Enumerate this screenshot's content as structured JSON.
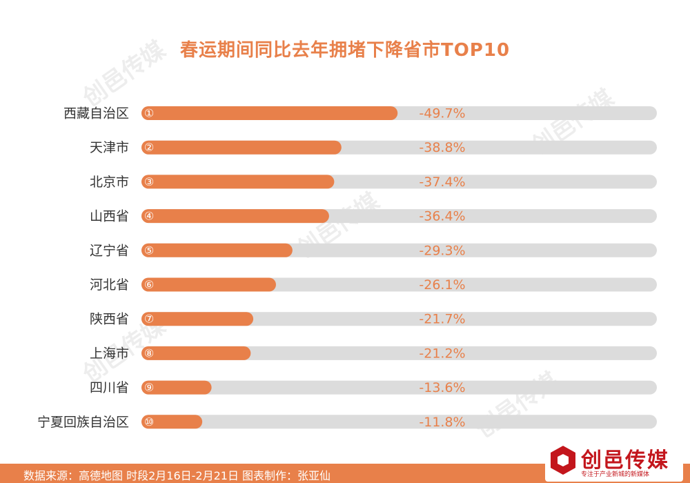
{
  "chart_data": {
    "type": "bar",
    "orientation": "horizontal",
    "title": "春运期间同比去年拥堵下降省市TOP10",
    "categories": [
      "西藏自治区",
      "天津市",
      "北京市",
      "山西省",
      "辽宁省",
      "河北省",
      "陕西省",
      "上海市",
      "四川省",
      "宁夏回族自治区"
    ],
    "ranks": [
      "①",
      "②",
      "③",
      "④",
      "⑤",
      "⑥",
      "⑦",
      "⑧",
      "⑨",
      "⑩"
    ],
    "values": [
      -49.7,
      -38.8,
      -37.4,
      -36.4,
      -29.3,
      -26.1,
      -21.7,
      -21.2,
      -13.6,
      -11.8
    ],
    "value_labels": [
      "-49.7%",
      "-38.8%",
      "-37.4%",
      "-36.4%",
      "-29.3%",
      "-26.1%",
      "-21.7%",
      "-21.2%",
      "-13.6%",
      "-11.8%"
    ],
    "unit": "%",
    "xlim": [
      0,
      100
    ],
    "grid": false,
    "legend": "none",
    "colors": {
      "bar": "#e8804a",
      "track": "#dcdcdc",
      "value_label": "#e8804a",
      "rank_ring": "#ffffff",
      "category_label": "#333333"
    }
  },
  "footer": {
    "text": "数据来源：高德地图 时段2月16日-2月21日 图表制作：张亚仙"
  },
  "logo": {
    "name": "创邑传媒",
    "tagline": "专注于产业新城的新媒体",
    "color": "#c3161c"
  },
  "watermark": {
    "text": "创邑传媒"
  }
}
